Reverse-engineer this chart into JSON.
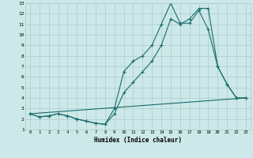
{
  "xlabel": "Humidex (Indice chaleur)",
  "background_color": "#cce8e8",
  "grid_color": "#aacccc",
  "line_color": "#1a6b6b",
  "xlim": [
    -0.5,
    23.5
  ],
  "ylim": [
    1,
    13
  ],
  "xticks": [
    0,
    1,
    2,
    3,
    4,
    5,
    6,
    7,
    8,
    9,
    10,
    11,
    12,
    13,
    14,
    15,
    16,
    17,
    18,
    19,
    20,
    21,
    22,
    23
  ],
  "yticks": [
    1,
    2,
    3,
    4,
    5,
    6,
    7,
    8,
    9,
    10,
    11,
    12,
    13
  ],
  "series1_x": [
    0,
    1,
    2,
    3,
    4,
    5,
    6,
    7,
    8,
    9,
    10,
    11,
    12,
    13,
    14,
    15,
    16,
    17,
    18,
    19,
    20,
    21,
    22,
    23
  ],
  "series1_y": [
    2.5,
    2.2,
    2.3,
    2.5,
    2.3,
    2.0,
    1.8,
    1.6,
    1.5,
    3.0,
    6.5,
    7.5,
    8.0,
    9.0,
    11.0,
    13.0,
    11.1,
    11.1,
    12.3,
    10.5,
    7.0,
    5.3,
    4.0,
    4.0
  ],
  "series2_x": [
    0,
    1,
    2,
    3,
    4,
    5,
    6,
    7,
    8,
    9,
    10,
    11,
    12,
    13,
    14,
    15,
    16,
    17,
    18,
    19,
    20,
    21,
    22,
    23
  ],
  "series2_y": [
    2.5,
    2.2,
    2.3,
    2.5,
    2.3,
    2.0,
    1.8,
    1.6,
    1.5,
    2.5,
    4.5,
    5.5,
    6.5,
    7.5,
    9.0,
    11.5,
    11.0,
    11.5,
    12.5,
    12.5,
    7.0,
    5.3,
    4.0,
    4.0
  ],
  "series3_x": [
    0,
    23
  ],
  "series3_y": [
    2.5,
    4.0
  ]
}
